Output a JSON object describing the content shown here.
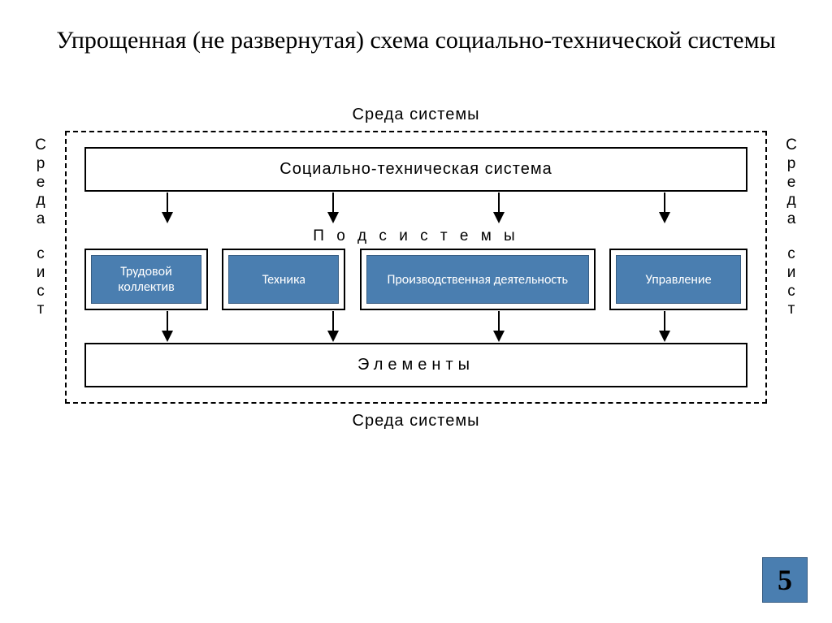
{
  "title": "Упрощенная (не развернутая) схема социально-технической системы",
  "env_top": "Среда системы",
  "env_bottom": "Среда системы",
  "vert_left_1": "Среда",
  "vert_left_2": "сист",
  "vert_right_1": "Среда",
  "vert_right_2": "сист",
  "main_system": "Социально-техническая система",
  "subsystems_label": "П о д с и с т е м ы",
  "subs": [
    {
      "label": "Трудовой коллектив"
    },
    {
      "label": "Техника"
    },
    {
      "label": "Производственная деятельность"
    },
    {
      "label": "Управление"
    }
  ],
  "elements_label": "Элементы",
  "page_number": "5",
  "colors": {
    "sub_box_bg": "#4a7eb0",
    "sub_box_border": "#385d82",
    "text": "#000000",
    "bg": "#ffffff"
  }
}
